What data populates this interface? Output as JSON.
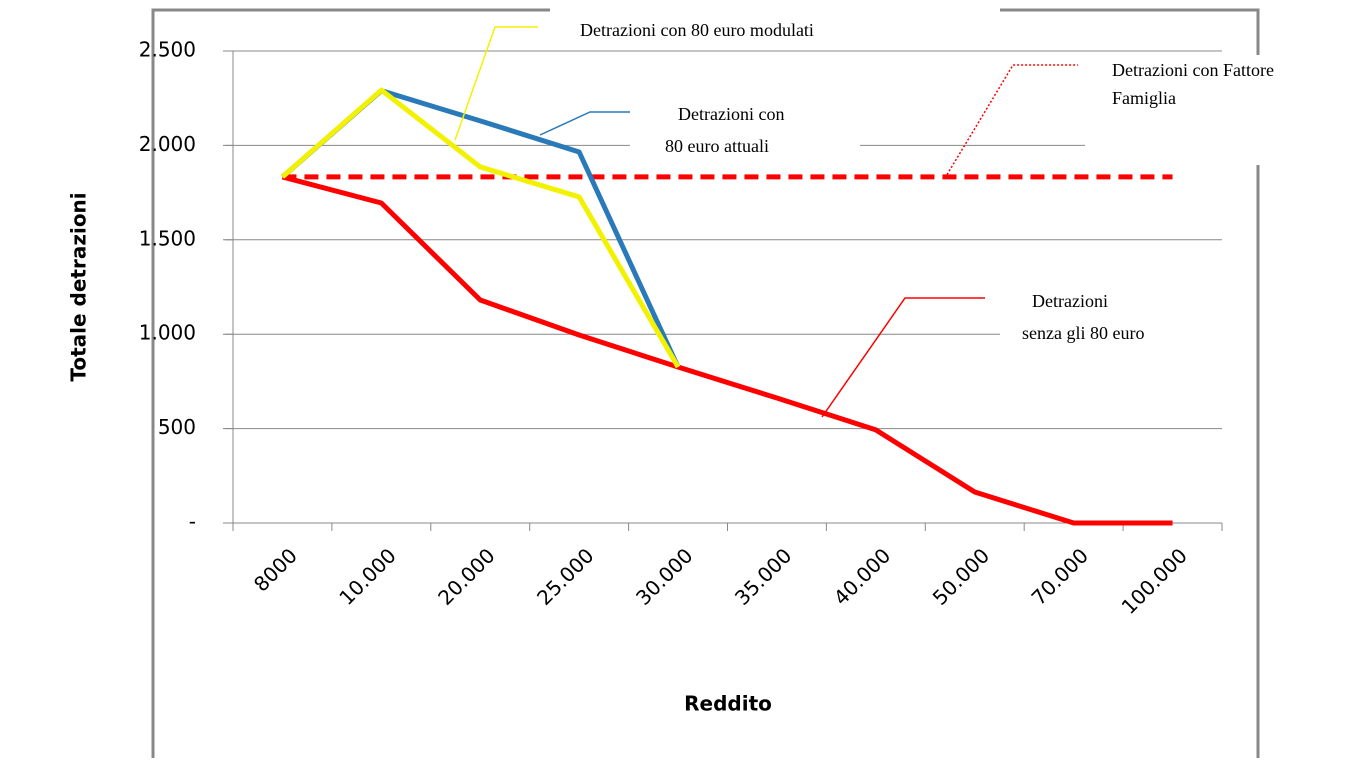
{
  "chart_data": {
    "type": "line",
    "xlabel": "Reddito",
    "ylabel": "Totale detrazioni",
    "categories": [
      "8000",
      "10.000",
      "20.000",
      "25.000",
      "30.000",
      "35.000",
      "40.000",
      "50.000",
      "70.000",
      "100.000"
    ],
    "series": [
      {
        "label_lines": [
          "Detrazioni",
          "senza gli 80 euro"
        ],
        "color": "#ff0000",
        "dashed": false,
        "values": [
          1833,
          1695,
          1181,
          996,
          826,
          662,
          493,
          164,
          0,
          0
        ]
      },
      {
        "label_lines": [
          "Detrazioni con Fattore",
          "Famiglia"
        ],
        "color": "#ff0000",
        "dashed": true,
        "values": [
          1833,
          1833,
          1833,
          1833,
          1833,
          1833,
          1833,
          1833,
          1833,
          1833
        ]
      },
      {
        "label_lines": [
          "Detrazioni con",
          "80 euro attuali"
        ],
        "color": "#2a7ab9",
        "dashed": false,
        "values": [
          1833,
          2290,
          2130,
          1965,
          826,
          null,
          null,
          null,
          null,
          null
        ]
      },
      {
        "label_lines": [
          "Detrazioni con 80 euro modulati"
        ],
        "color": "#f2f200",
        "dashed": false,
        "values": [
          1833,
          2293,
          1886,
          1727,
          826,
          null,
          null,
          null,
          null,
          null
        ]
      }
    ],
    "ylim": [
      0,
      2500
    ],
    "yticks": [
      {
        "value": 0,
        "label": "-"
      },
      500,
      {
        "value": 1000,
        "label": "1.000"
      },
      {
        "value": 1500,
        "label": "1.500"
      },
      {
        "value": 2000,
        "label": "2.000"
      },
      {
        "value": 2500,
        "label": "2.500"
      }
    ],
    "grid": true
  }
}
